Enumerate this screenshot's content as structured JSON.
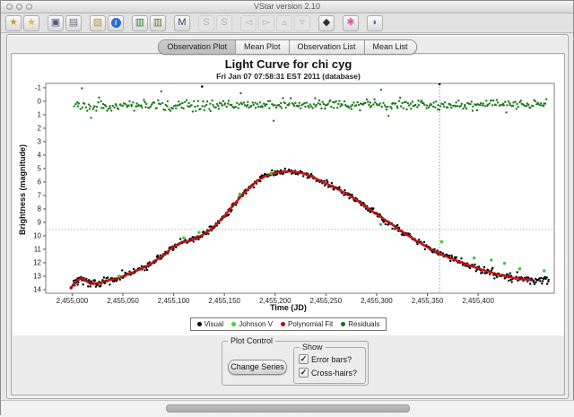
{
  "window": {
    "title": "VStar version 2.10",
    "traffic_lights": [
      {
        "name": "close"
      },
      {
        "name": "minimize"
      },
      {
        "name": "zoom"
      }
    ]
  },
  "toolbar": {
    "icons": [
      {
        "name": "new-star-from-database-icon",
        "glyph": "★",
        "color": "#c9a21d",
        "enabled": true,
        "group_start": false
      },
      {
        "name": "new-star-from-file-icon",
        "glyph": "★",
        "color": "#e0bf3a",
        "enabled": true,
        "group_start": false
      },
      {
        "name": "save-icon",
        "glyph": "▣",
        "color": "#4a5a78",
        "enabled": true,
        "group_start": true
      },
      {
        "name": "print-icon",
        "glyph": "▤",
        "color": "#68707c",
        "enabled": true,
        "group_start": false
      },
      {
        "name": "info-document-icon",
        "glyph": "▨",
        "color": "#b3923f",
        "enabled": true,
        "group_start": true
      },
      {
        "name": "info-icon",
        "glyph": "i",
        "color": "#ffffff",
        "enabled": true,
        "group_start": false,
        "badge": "circle"
      },
      {
        "name": "raw-data-plot-icon",
        "glyph": "▥",
        "color": "#2e7d32",
        "enabled": true,
        "group_start": true
      },
      {
        "name": "phase-plot-icon",
        "glyph": "▥",
        "color": "#6b6f2a",
        "enabled": true,
        "group_start": false
      },
      {
        "name": "means-icon",
        "glyph": "M",
        "color": "#37425c",
        "enabled": true,
        "group_start": true
      },
      {
        "name": "zoom-in-icon",
        "glyph": "S",
        "color": "#9a9a9a",
        "enabled": false,
        "group_start": true
      },
      {
        "name": "zoom-out-icon",
        "glyph": "S",
        "color": "#9a9a9a",
        "enabled": false,
        "group_start": false
      },
      {
        "name": "filter-left-icon",
        "glyph": "◅",
        "color": "#9a9a9a",
        "enabled": false,
        "group_start": true
      },
      {
        "name": "filter-right-icon",
        "glyph": "▻",
        "color": "#9a9a9a",
        "enabled": false,
        "group_start": false
      },
      {
        "name": "filter-up-icon",
        "glyph": "▵",
        "color": "#9a9a9a",
        "enabled": false,
        "group_start": false
      },
      {
        "name": "filter-down-icon",
        "glyph": "▿",
        "color": "#9a9a9a",
        "enabled": false,
        "group_start": false
      },
      {
        "name": "pan-icon",
        "glyph": "◆",
        "color": "#2f2f2f",
        "enabled": true,
        "group_start": true
      },
      {
        "name": "phase-search-icon",
        "glyph": "✱",
        "color": "#d45f9e",
        "enabled": true,
        "group_start": true
      },
      {
        "name": "help-icon",
        "glyph": "◗",
        "color": "#3a6cc0",
        "enabled": true,
        "group_start": true
      }
    ]
  },
  "tabs": [
    {
      "label": "Observation Plot",
      "active": true
    },
    {
      "label": "Mean Plot",
      "active": false
    },
    {
      "label": "Observation List",
      "active": false
    },
    {
      "label": "Mean List",
      "active": false
    }
  ],
  "chart": {
    "title": "Light Curve for chi cyg",
    "subtitle": "Fri Jan 07 07:58:31 EST 2011 (database)",
    "xlabel": "Time (JD)",
    "ylabel": "Brightness (magnitude)"
  },
  "chart_data": {
    "type": "scatter",
    "title": "Light Curve for chi cyg",
    "subtitle": "Fri Jan 07 07:58:31 EST 2011 (database)",
    "xlabel": "Time (JD)",
    "ylabel": "Brightness (magnitude)",
    "x_axis": {
      "min": 2454974,
      "max": 2455475,
      "tick_values": [
        2455000,
        2455050,
        2455100,
        2455150,
        2455200,
        2455250,
        2455300,
        2455350,
        2455400
      ],
      "tick_labels": [
        "2,455,000",
        "2,455,050",
        "2,455,100",
        "2,455,150",
        "2,455,200",
        "2,455,250",
        "2,455,300",
        "2,455,350",
        "2,455,400"
      ]
    },
    "y_axis": {
      "min": -1.33,
      "max": 14.27,
      "inverted": true,
      "tick_values": [
        -1,
        0,
        1,
        2,
        3,
        4,
        5,
        6,
        7,
        8,
        9,
        10,
        11,
        12,
        13,
        14
      ]
    },
    "crosshair": {
      "x": 2455362,
      "y": 9.53
    },
    "legend": {
      "position": "bottom",
      "entries": [
        {
          "label": "Visual",
          "color": "#000000"
        },
        {
          "label": "Johnson V",
          "color": "#3dd43d"
        },
        {
          "label": "Polynomial Fit",
          "color": "#b01212"
        },
        {
          "label": "Residuals",
          "color": "#1d6b1d"
        }
      ]
    },
    "series": [
      {
        "name": "Visual",
        "type": "scatter",
        "color": "#000000",
        "generated": {
          "count": 640,
          "x_range": [
            2454998,
            2455470
          ],
          "seed": 42,
          "sigma": 0.19,
          "faint_boost": 1.5
        },
        "extra_points": [
          [
            2455362,
            -1.27
          ],
          [
            2455128,
            -1.1
          ]
        ]
      },
      {
        "name": "Johnson V",
        "type": "scatter",
        "color": "#35cc35",
        "points": [
          [
            2455046,
            13.0
          ],
          [
            2455110,
            10.15
          ],
          [
            2455125,
            9.75
          ],
          [
            2455165,
            6.9
          ],
          [
            2455196,
            5.35
          ],
          [
            2455304,
            9.15
          ],
          [
            2455364,
            10.45
          ],
          [
            2455396,
            11.65
          ],
          [
            2455413,
            11.8
          ],
          [
            2455426,
            12.05
          ],
          [
            2455441,
            12.45
          ],
          [
            2455465,
            12.6
          ]
        ]
      },
      {
        "name": "Polynomial Fit",
        "type": "line",
        "color": "#c81616",
        "points": [
          [
            2454999,
            13.85
          ],
          [
            2455004,
            13.45
          ],
          [
            2455009,
            13.15
          ],
          [
            2455013,
            13.3
          ],
          [
            2455018,
            13.55
          ],
          [
            2455024,
            13.55
          ],
          [
            2455032,
            13.4
          ],
          [
            2455042,
            13.2
          ],
          [
            2455052,
            12.95
          ],
          [
            2455062,
            12.65
          ],
          [
            2455072,
            12.3
          ],
          [
            2455082,
            11.85
          ],
          [
            2455092,
            11.3
          ],
          [
            2455100,
            10.8
          ],
          [
            2455108,
            10.5
          ],
          [
            2455116,
            10.35
          ],
          [
            2455124,
            10.1
          ],
          [
            2455131,
            9.8
          ],
          [
            2455139,
            9.35
          ],
          [
            2455148,
            8.7
          ],
          [
            2455158,
            7.8
          ],
          [
            2455168,
            6.95
          ],
          [
            2455178,
            6.2
          ],
          [
            2455187,
            5.7
          ],
          [
            2455196,
            5.4
          ],
          [
            2455205,
            5.25
          ],
          [
            2455214,
            5.2
          ],
          [
            2455224,
            5.3
          ],
          [
            2455234,
            5.55
          ],
          [
            2455246,
            5.95
          ],
          [
            2455258,
            6.4
          ],
          [
            2455272,
            6.95
          ],
          [
            2455285,
            7.6
          ],
          [
            2455298,
            8.3
          ],
          [
            2455312,
            9.0
          ],
          [
            2455326,
            9.75
          ],
          [
            2455341,
            10.45
          ],
          [
            2455356,
            11.1
          ],
          [
            2455371,
            11.6
          ],
          [
            2455386,
            12.05
          ],
          [
            2455401,
            12.45
          ],
          [
            2455416,
            12.8
          ],
          [
            2455430,
            13.05
          ],
          [
            2455442,
            13.2
          ],
          [
            2455452,
            13.28
          ]
        ]
      },
      {
        "name": "Residuals",
        "type": "scatter",
        "color": "#1d7a1d",
        "generated": {
          "count": 420,
          "x_range": [
            2455002,
            2455468
          ],
          "seed": 7,
          "center": 0.28,
          "sigma": 0.33,
          "outlier_rate": 0.03
        }
      }
    ]
  },
  "plot_control": {
    "label": "Plot Control",
    "change_series_button": "Change Series",
    "show_group": {
      "label": "Show",
      "checkboxes": [
        {
          "label": "Error bars?",
          "checked": true
        },
        {
          "label": "Cross-hairs?",
          "checked": true
        }
      ]
    }
  },
  "status_bar": {
    "progress_bar": true
  }
}
